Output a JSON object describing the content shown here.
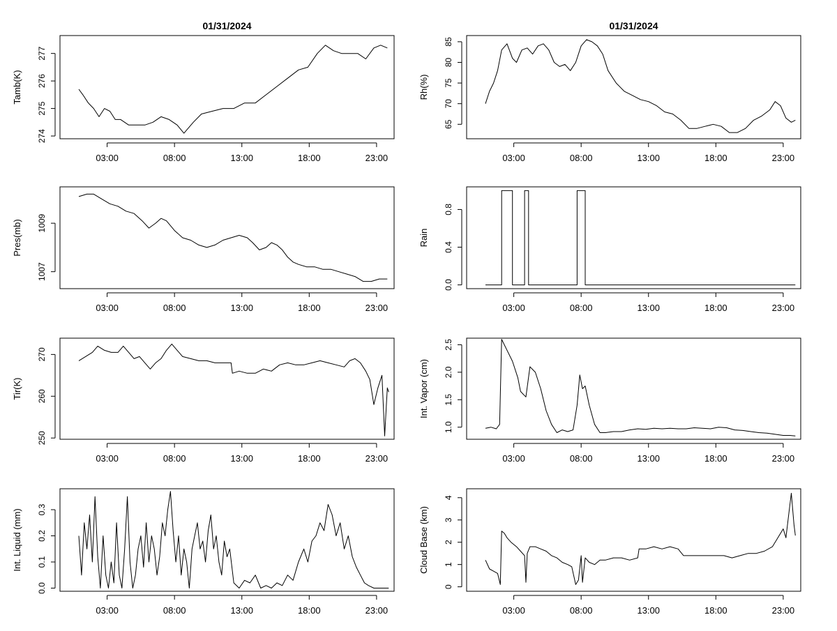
{
  "chart_data": [
    {
      "type": "line",
      "title": "01/31/2024",
      "ylabel": "Tamb(K)",
      "xticks": [
        "03:00",
        "08:00",
        "13:00",
        "18:00",
        "23:00"
      ],
      "xlim": [
        -0.5,
        24.3
      ],
      "ylim": [
        273.9,
        277.65
      ],
      "yticks": [
        274,
        275,
        276,
        277
      ],
      "x": [
        0.9,
        1.2,
        1.6,
        2.0,
        2.4,
        2.8,
        3.2,
        3.6,
        4.0,
        4.6,
        5.2,
        5.8,
        6.4,
        7.0,
        7.6,
        8.2,
        8.7,
        9.4,
        10.0,
        10.8,
        11.6,
        12.4,
        13.2,
        14.0,
        14.8,
        15.6,
        16.4,
        17.2,
        17.9,
        18.6,
        19.2,
        19.8,
        20.4,
        21.0,
        21.6,
        22.2,
        22.8,
        23.3,
        23.8
      ],
      "values": [
        275.7,
        275.5,
        275.2,
        275.0,
        274.7,
        275.0,
        274.9,
        274.6,
        274.6,
        274.4,
        274.4,
        274.4,
        274.5,
        274.7,
        274.6,
        274.4,
        274.1,
        274.5,
        274.8,
        274.9,
        275.0,
        275.0,
        275.2,
        275.2,
        275.5,
        275.8,
        276.1,
        276.4,
        276.5,
        277.0,
        277.3,
        277.1,
        277.0,
        277.0,
        277.0,
        276.8,
        277.2,
        277.3,
        277.2
      ]
    },
    {
      "type": "line",
      "title": "01/31/2024",
      "ylabel": "Rh(%)",
      "xticks": [
        "03:00",
        "08:00",
        "13:00",
        "18:00",
        "23:00"
      ],
      "xlim": [
        -0.5,
        24.3
      ],
      "ylim": [
        61.5,
        86.5
      ],
      "yticks": [
        65,
        70,
        75,
        80,
        85
      ],
      "x": [
        0.9,
        1.2,
        1.5,
        1.8,
        2.1,
        2.5,
        2.9,
        3.2,
        3.6,
        4.0,
        4.4,
        4.8,
        5.2,
        5.6,
        6.0,
        6.4,
        6.8,
        7.2,
        7.6,
        8.0,
        8.4,
        8.8,
        9.2,
        9.6,
        10.0,
        10.6,
        11.2,
        11.8,
        12.4,
        13.0,
        13.6,
        14.2,
        14.8,
        15.4,
        16.0,
        16.6,
        17.2,
        17.8,
        18.4,
        19.0,
        19.6,
        20.2,
        20.8,
        21.4,
        22.0,
        22.4,
        22.8,
        23.2,
        23.6,
        23.9
      ],
      "values": [
        70.0,
        73.0,
        75.0,
        78.0,
        83.0,
        84.5,
        81.0,
        80.0,
        83.0,
        83.5,
        82.0,
        84.0,
        84.5,
        83.0,
        80.0,
        79.0,
        79.5,
        78.0,
        80.0,
        84.0,
        85.5,
        85.0,
        84.0,
        82.0,
        78.0,
        75.0,
        73.0,
        72.0,
        71.0,
        70.5,
        69.5,
        68.0,
        67.5,
        66.0,
        64.0,
        64.0,
        64.5,
        65.0,
        64.5,
        63.0,
        63.0,
        64.0,
        66.0,
        67.0,
        68.5,
        70.5,
        69.5,
        66.5,
        65.5,
        66.0
      ]
    },
    {
      "type": "line",
      "ylabel": "Pres(mb)",
      "xticks": [
        "03:00",
        "08:00",
        "13:00",
        "18:00",
        "23:00"
      ],
      "xlim": [
        -0.5,
        24.3
      ],
      "ylim": [
        1006.3,
        1010.5
      ],
      "yticks": [
        1007,
        1009
      ],
      "x": [
        0.9,
        1.5,
        2.0,
        2.6,
        3.2,
        3.8,
        4.4,
        5.0,
        5.6,
        6.1,
        6.6,
        7.0,
        7.4,
        8.0,
        8.6,
        9.2,
        9.8,
        10.4,
        11.0,
        11.6,
        12.2,
        12.8,
        13.4,
        13.8,
        14.3,
        14.8,
        15.2,
        15.6,
        16.0,
        16.4,
        16.8,
        17.2,
        17.8,
        18.4,
        19.0,
        19.6,
        20.2,
        20.8,
        21.4,
        22.0,
        22.6,
        23.2,
        23.8
      ],
      "values": [
        1010.1,
        1010.2,
        1010.2,
        1010.0,
        1009.8,
        1009.7,
        1009.5,
        1009.4,
        1009.1,
        1008.8,
        1009.0,
        1009.2,
        1009.1,
        1008.7,
        1008.4,
        1008.3,
        1008.1,
        1008.0,
        1008.1,
        1008.3,
        1008.4,
        1008.5,
        1008.4,
        1008.2,
        1007.9,
        1008.0,
        1008.2,
        1008.1,
        1007.9,
        1007.6,
        1007.4,
        1007.3,
        1007.2,
        1007.2,
        1007.1,
        1007.1,
        1007.0,
        1006.9,
        1006.8,
        1006.6,
        1006.6,
        1006.7,
        1006.7
      ]
    },
    {
      "type": "line",
      "ylabel": "Rain",
      "xticks": [
        "03:00",
        "08:00",
        "13:00",
        "18:00",
        "23:00"
      ],
      "xlim": [
        -0.5,
        24.3
      ],
      "ylim": [
        -0.04,
        1.04
      ],
      "yticks": [
        0.0,
        0.4,
        0.8
      ],
      "step": true,
      "x": [
        0.9,
        2.1,
        2.1,
        2.9,
        2.9,
        3.8,
        3.8,
        4.1,
        4.1,
        7.7,
        7.7,
        8.3,
        8.3,
        23.9
      ],
      "values": [
        0,
        0,
        1,
        1,
        0,
        0,
        1,
        1,
        0,
        0,
        1,
        1,
        0,
        0
      ]
    },
    {
      "type": "line",
      "ylabel": "Tir(K)",
      "xticks": [
        "03:00",
        "08:00",
        "13:00",
        "18:00",
        "23:00"
      ],
      "xlim": [
        -0.5,
        24.3
      ],
      "ylim": [
        249.7,
        273.9
      ],
      "yticks": [
        250,
        260,
        270
      ],
      "x": [
        0.9,
        1.4,
        1.9,
        2.3,
        2.8,
        3.3,
        3.8,
        4.2,
        4.6,
        5.0,
        5.4,
        5.8,
        6.2,
        6.6,
        7.0,
        7.4,
        7.8,
        8.2,
        8.6,
        9.2,
        9.8,
        10.4,
        11.0,
        11.6,
        12.2,
        12.3,
        12.8,
        13.4,
        14.0,
        14.6,
        15.2,
        15.8,
        16.4,
        17.0,
        17.6,
        18.2,
        18.8,
        19.4,
        20.0,
        20.6,
        21.0,
        21.4,
        21.8,
        22.2,
        22.5,
        22.8,
        23.1,
        23.4,
        23.6,
        23.8,
        23.9
      ],
      "values": [
        268.5,
        269.5,
        270.5,
        272.0,
        271.0,
        270.5,
        270.5,
        272.0,
        270.5,
        269.0,
        269.5,
        268.0,
        266.5,
        268.0,
        269.0,
        271.0,
        272.5,
        271.0,
        269.5,
        269.0,
        268.5,
        268.5,
        268.0,
        268.0,
        268.0,
        265.5,
        266.0,
        265.5,
        265.5,
        266.5,
        266.0,
        267.5,
        268.0,
        267.5,
        267.5,
        268.0,
        268.5,
        268.0,
        267.5,
        267.0,
        268.5,
        269.0,
        268.0,
        266.0,
        264.0,
        258.0,
        262.0,
        265.0,
        250.5,
        262.0,
        261.0
      ]
    },
    {
      "type": "line",
      "ylabel": "Int. Vapor (cm)",
      "xticks": [
        "03:00",
        "08:00",
        "13:00",
        "18:00",
        "23:00"
      ],
      "xlim": [
        -0.5,
        24.3
      ],
      "ylim": [
        0.78,
        2.62
      ],
      "yticks": [
        1.0,
        1.5,
        2.0,
        2.5
      ],
      "x": [
        0.9,
        1.3,
        1.7,
        1.95,
        2.1,
        2.5,
        2.9,
        3.3,
        3.5,
        3.7,
        3.9,
        4.2,
        4.6,
        5.0,
        5.4,
        5.8,
        6.2,
        6.6,
        7.0,
        7.4,
        7.7,
        7.9,
        8.1,
        8.3,
        8.6,
        9.0,
        9.4,
        9.8,
        10.4,
        11.0,
        11.6,
        12.2,
        12.8,
        13.4,
        14.0,
        14.6,
        15.2,
        15.8,
        16.4,
        17.0,
        17.6,
        18.2,
        18.8,
        19.4,
        20.0,
        20.6,
        21.2,
        21.8,
        22.4,
        23.0,
        23.5,
        23.9
      ],
      "values": [
        0.98,
        1.0,
        0.97,
        1.05,
        2.6,
        2.4,
        2.2,
        1.9,
        1.65,
        1.6,
        1.55,
        2.1,
        2.0,
        1.7,
        1.3,
        1.05,
        0.9,
        0.95,
        0.92,
        0.95,
        1.4,
        1.95,
        1.7,
        1.75,
        1.4,
        1.05,
        0.9,
        0.9,
        0.92,
        0.92,
        0.95,
        0.97,
        0.96,
        0.98,
        0.97,
        0.98,
        0.97,
        0.97,
        0.99,
        0.98,
        0.97,
        1.0,
        0.99,
        0.95,
        0.94,
        0.92,
        0.9,
        0.89,
        0.87,
        0.85,
        0.85,
        0.84
      ]
    },
    {
      "type": "line",
      "ylabel": "Int. Liquid (mm)",
      "xticks": [
        "03:00",
        "08:00",
        "13:00",
        "18:00",
        "23:00"
      ],
      "xlim": [
        -0.5,
        24.3
      ],
      "ylim": [
        -0.012,
        0.38
      ],
      "yticks": [
        0.0,
        0.1,
        0.2,
        0.3
      ],
      "x": [
        0.9,
        1.1,
        1.3,
        1.5,
        1.7,
        1.9,
        2.1,
        2.3,
        2.5,
        2.7,
        2.9,
        3.1,
        3.3,
        3.5,
        3.7,
        3.9,
        4.1,
        4.3,
        4.5,
        4.7,
        4.9,
        5.1,
        5.3,
        5.5,
        5.7,
        5.9,
        6.1,
        6.3,
        6.5,
        6.7,
        6.9,
        7.1,
        7.3,
        7.5,
        7.7,
        7.9,
        8.1,
        8.3,
        8.5,
        8.7,
        8.9,
        9.1,
        9.3,
        9.5,
        9.7,
        9.9,
        10.1,
        10.3,
        10.5,
        10.7,
        10.9,
        11.1,
        11.3,
        11.5,
        11.7,
        11.9,
        12.1,
        12.4,
        12.8,
        13.2,
        13.6,
        14.0,
        14.4,
        14.8,
        15.2,
        15.6,
        16.0,
        16.4,
        16.8,
        17.2,
        17.6,
        17.9,
        18.2,
        18.5,
        18.8,
        19.1,
        19.4,
        19.7,
        20.0,
        20.3,
        20.6,
        20.9,
        21.2,
        21.5,
        21.8,
        22.1,
        22.4,
        22.8,
        23.2,
        23.6,
        23.9
      ],
      "values": [
        0.2,
        0.05,
        0.25,
        0.15,
        0.28,
        0.1,
        0.35,
        0.12,
        0.0,
        0.2,
        0.05,
        0.0,
        0.1,
        0.02,
        0.25,
        0.05,
        0.0,
        0.15,
        0.35,
        0.1,
        0.0,
        0.05,
        0.15,
        0.2,
        0.08,
        0.25,
        0.1,
        0.2,
        0.15,
        0.05,
        0.12,
        0.25,
        0.2,
        0.3,
        0.37,
        0.22,
        0.1,
        0.2,
        0.05,
        0.15,
        0.1,
        0.0,
        0.15,
        0.2,
        0.25,
        0.15,
        0.18,
        0.1,
        0.22,
        0.28,
        0.15,
        0.2,
        0.1,
        0.05,
        0.18,
        0.12,
        0.15,
        0.02,
        0.0,
        0.03,
        0.02,
        0.05,
        0.0,
        0.01,
        0.0,
        0.02,
        0.01,
        0.05,
        0.03,
        0.1,
        0.15,
        0.1,
        0.18,
        0.2,
        0.25,
        0.22,
        0.32,
        0.28,
        0.2,
        0.25,
        0.15,
        0.2,
        0.12,
        0.08,
        0.05,
        0.02,
        0.01,
        0.0,
        0.0,
        0.0,
        0.0
      ]
    },
    {
      "type": "line",
      "ylabel": "Cloud Base (km)",
      "xticks": [
        "03:00",
        "08:00",
        "13:00",
        "18:00",
        "23:00"
      ],
      "xlim": [
        -0.5,
        24.3
      ],
      "ylim": [
        -0.2,
        4.4
      ],
      "yticks": [
        0,
        1,
        2,
        3,
        4
      ],
      "x": [
        0.9,
        1.2,
        1.5,
        1.8,
        2.0,
        2.1,
        2.3,
        2.5,
        2.8,
        3.2,
        3.5,
        3.8,
        3.9,
        4.0,
        4.2,
        4.6,
        5.0,
        5.4,
        5.8,
        6.2,
        6.6,
        7.0,
        7.3,
        7.6,
        7.8,
        8.0,
        8.1,
        8.3,
        8.6,
        9.0,
        9.4,
        9.8,
        10.4,
        11.0,
        11.6,
        12.2,
        12.3,
        12.8,
        13.4,
        14.0,
        14.6,
        15.2,
        15.6,
        16.2,
        16.8,
        17.4,
        18.0,
        18.6,
        19.2,
        19.8,
        20.4,
        21.0,
        21.6,
        22.2,
        22.6,
        23.0,
        23.2,
        23.4,
        23.6,
        23.8,
        23.9
      ],
      "values": [
        1.2,
        0.8,
        0.7,
        0.6,
        0.1,
        2.5,
        2.4,
        2.2,
        2.0,
        1.8,
        1.6,
        1.4,
        0.2,
        1.5,
        1.8,
        1.8,
        1.7,
        1.6,
        1.4,
        1.3,
        1.1,
        1.0,
        0.9,
        0.1,
        0.3,
        1.4,
        0.2,
        1.3,
        1.1,
        1.0,
        1.2,
        1.2,
        1.3,
        1.3,
        1.2,
        1.3,
        1.7,
        1.7,
        1.8,
        1.7,
        1.8,
        1.7,
        1.4,
        1.4,
        1.4,
        1.4,
        1.4,
        1.4,
        1.3,
        1.4,
        1.5,
        1.5,
        1.6,
        1.8,
        2.2,
        2.6,
        2.2,
        3.2,
        4.2,
        2.8,
        2.3
      ]
    }
  ]
}
